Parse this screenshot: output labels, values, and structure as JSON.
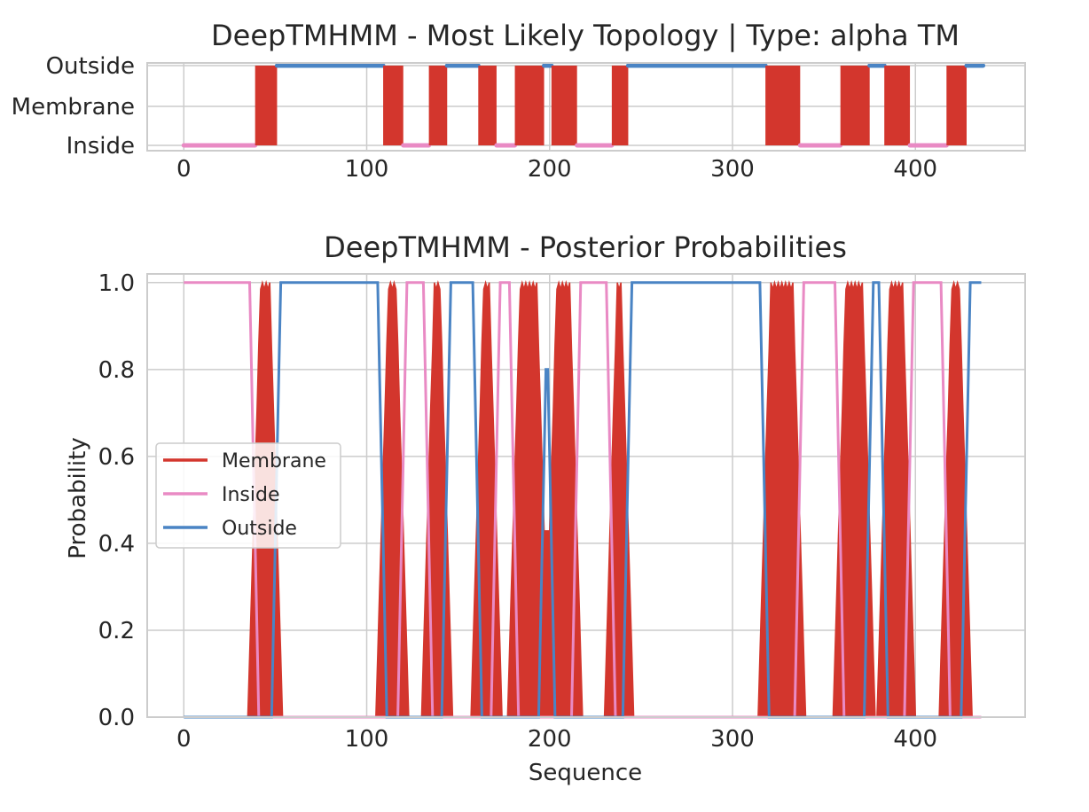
{
  "chart_data": [
    {
      "type": "line",
      "title": "DeepTMHMM - Most Likely Topology | Type: alpha TM",
      "xlabel": "",
      "ylabel": "",
      "xlim": [
        -20,
        460
      ],
      "x_ticks": [
        0,
        100,
        200,
        300,
        400
      ],
      "y_categories": [
        "Inside",
        "Membrane",
        "Outside"
      ],
      "grid": true,
      "colors": {
        "membrane": "#d3362d",
        "inside": "#e98ac4",
        "outside": "#4a84c4"
      },
      "segments": [
        {
          "region": "Inside",
          "start": 0,
          "end": 39
        },
        {
          "region": "Membrane",
          "start": 39,
          "end": 51
        },
        {
          "region": "Outside",
          "start": 51,
          "end": 109
        },
        {
          "region": "Membrane",
          "start": 109,
          "end": 120
        },
        {
          "region": "Inside",
          "start": 120,
          "end": 134
        },
        {
          "region": "Membrane",
          "start": 134,
          "end": 144
        },
        {
          "region": "Outside",
          "start": 144,
          "end": 161
        },
        {
          "region": "Membrane",
          "start": 161,
          "end": 171
        },
        {
          "region": "Inside",
          "start": 171,
          "end": 181
        },
        {
          "region": "Membrane",
          "start": 181,
          "end": 197
        },
        {
          "region": "Outside",
          "start": 197,
          "end": 201
        },
        {
          "region": "Membrane",
          "start": 201,
          "end": 215
        },
        {
          "region": "Inside",
          "start": 215,
          "end": 234
        },
        {
          "region": "Membrane",
          "start": 234,
          "end": 243
        },
        {
          "region": "Outside",
          "start": 243,
          "end": 318
        },
        {
          "region": "Membrane",
          "start": 318,
          "end": 337
        },
        {
          "region": "Inside",
          "start": 337,
          "end": 359
        },
        {
          "region": "Membrane",
          "start": 359,
          "end": 375
        },
        {
          "region": "Outside",
          "start": 375,
          "end": 383
        },
        {
          "region": "Membrane",
          "start": 383,
          "end": 397
        },
        {
          "region": "Inside",
          "start": 397,
          "end": 417
        },
        {
          "region": "Membrane",
          "start": 417,
          "end": 428
        },
        {
          "region": "Outside",
          "start": 428,
          "end": 437
        }
      ]
    },
    {
      "type": "area",
      "title": "DeepTMHMM - Posterior Probabilities",
      "xlabel": "Sequence",
      "ylabel": "Probability",
      "xlim": [
        -20,
        460
      ],
      "ylim": [
        0,
        1.02
      ],
      "x_ticks": [
        0,
        100,
        200,
        300,
        400
      ],
      "y_ticks": [
        0.0,
        0.2,
        0.4,
        0.6,
        0.8,
        1.0
      ],
      "y_tick_labels": [
        "0.0",
        "0.2",
        "0.4",
        "0.6",
        "0.8",
        "1.0"
      ],
      "grid": true,
      "legend_position": "center-left",
      "series": [
        {
          "name": "Membrane",
          "color": "#d3362d"
        },
        {
          "name": "Inside",
          "color": "#e98ac4"
        },
        {
          "name": "Outside",
          "color": "#4a84c4"
        }
      ],
      "sequence_length": 437,
      "x_labels": [
        "0",
        "100",
        "200",
        "300",
        "400"
      ]
    }
  ]
}
